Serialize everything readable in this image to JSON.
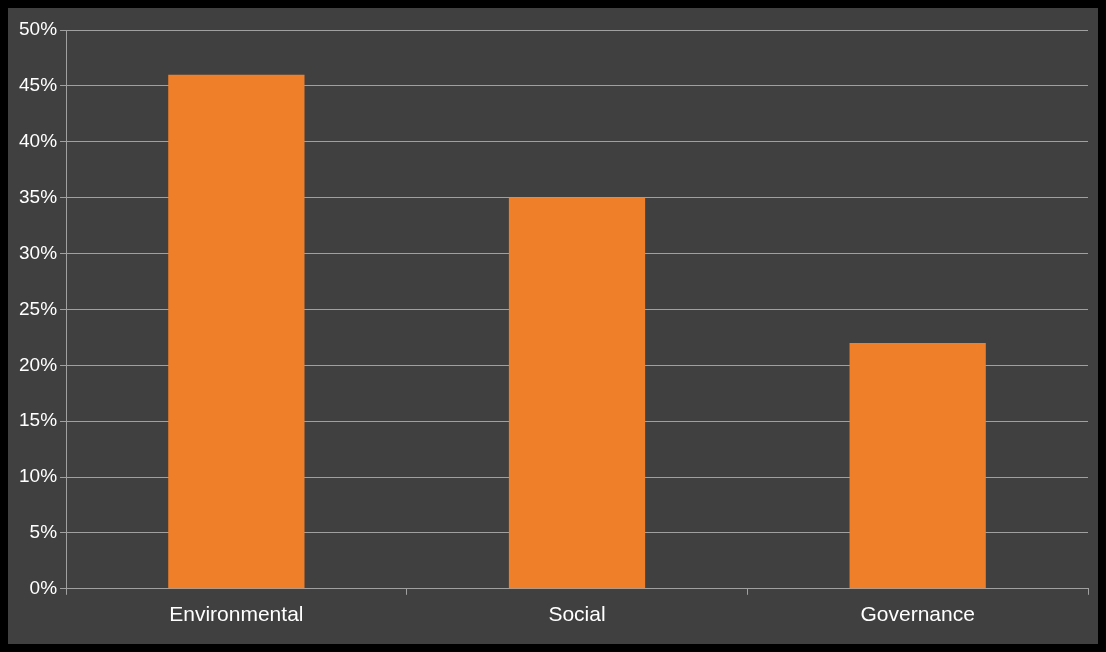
{
  "chart_data": {
    "type": "bar",
    "categories": [
      "Environmental",
      "Social",
      "Governance"
    ],
    "values": [
      46,
      35,
      22
    ],
    "color": "#f07f2a",
    "ylim": [
      0,
      50
    ],
    "yticks": [
      {
        "value": 0,
        "label": "0%"
      },
      {
        "value": 5,
        "label": "5%"
      },
      {
        "value": 10,
        "label": "10%"
      },
      {
        "value": 15,
        "label": "15%"
      },
      {
        "value": 20,
        "label": "20%"
      },
      {
        "value": 25,
        "label": "25%"
      },
      {
        "value": 30,
        "label": "30%"
      },
      {
        "value": 35,
        "label": "35%"
      },
      {
        "value": 40,
        "label": "40%"
      },
      {
        "value": 45,
        "label": "45%"
      },
      {
        "value": 50,
        "label": "50%"
      }
    ],
    "grid": "y"
  }
}
